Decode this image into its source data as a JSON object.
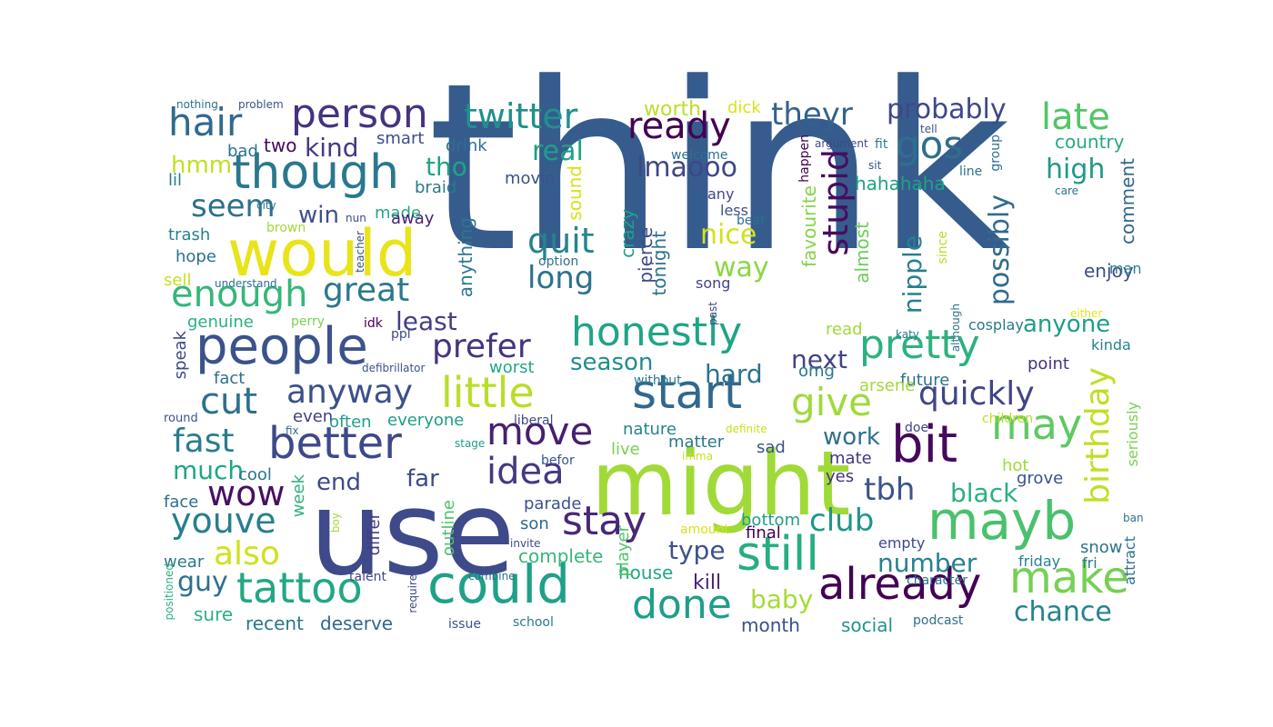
{
  "words": [
    {
      "text": "think",
      "color": "#365c8d",
      "vertical": false
    },
    {
      "text": "use",
      "color": "#3e4a89",
      "vertical": false
    },
    {
      "text": "might",
      "color": "#a0da39",
      "vertical": false
    },
    {
      "text": "would",
      "color": "#e8e419",
      "vertical": false
    },
    {
      "text": "people",
      "color": "#3b528b",
      "vertical": false
    },
    {
      "text": "could",
      "color": "#1fa187",
      "vertical": false
    },
    {
      "text": "mayb",
      "color": "#4ac16d",
      "vertical": false
    },
    {
      "text": "though",
      "color": "#2a788e",
      "vertical": false
    },
    {
      "text": "start",
      "color": "#31688e",
      "vertical": false
    },
    {
      "text": "still",
      "color": "#26ad81",
      "vertical": false
    },
    {
      "text": "better",
      "color": "#3e4989",
      "vertical": false
    },
    {
      "text": "already",
      "color": "#440154",
      "vertical": false
    },
    {
      "text": "bit",
      "color": "#46085c",
      "vertical": false
    },
    {
      "text": "honestly",
      "color": "#20a486",
      "vertical": false
    },
    {
      "text": "pretty",
      "color": "#2db27d",
      "vertical": false
    },
    {
      "text": "tattoo",
      "color": "#22a785",
      "vertical": false
    },
    {
      "text": "make",
      "color": "#75d054",
      "vertical": false
    },
    {
      "text": "little",
      "color": "#b8de29",
      "vertical": false
    },
    {
      "text": "may",
      "color": "#5ec962",
      "vertical": false
    },
    {
      "text": "move",
      "color": "#481f70",
      "vertical": false
    },
    {
      "text": "stay",
      "color": "#482878",
      "vertical": false
    },
    {
      "text": "done",
      "color": "#1f9e89",
      "vertical": false
    },
    {
      "text": "person",
      "color": "#46337e",
      "vertical": false
    },
    {
      "text": "wow",
      "color": "#471063",
      "vertical": false
    },
    {
      "text": "idea",
      "color": "#443983",
      "vertical": false
    },
    {
      "text": "youve",
      "color": "#277f8e",
      "vertical": false
    },
    {
      "text": "enough",
      "color": "#35b779",
      "vertical": false
    },
    {
      "text": "hair",
      "color": "#30698e",
      "vertical": false
    },
    {
      "text": "give",
      "color": "#9fda3a",
      "vertical": false
    },
    {
      "text": "stupid",
      "color": "#470d60",
      "vertical": true
    },
    {
      "text": "birthday",
      "color": "#c0df25",
      "vertical": true
    },
    {
      "text": "ready",
      "color": "#440154",
      "vertical": false
    },
    {
      "text": "twitter",
      "color": "#21908d",
      "vertical": false
    },
    {
      "text": "prefer",
      "color": "#463480",
      "vertical": false
    },
    {
      "text": "gos",
      "color": "#2e6f8e",
      "vertical": false
    },
    {
      "text": "late",
      "color": "#52c569",
      "vertical": false
    },
    {
      "text": "anyway",
      "color": "#3b518b",
      "vertical": false
    },
    {
      "text": "quickly",
      "color": "#414487",
      "vertical": false
    },
    {
      "text": "also",
      "color": "#d0e11c",
      "vertical": false
    },
    {
      "text": "cut",
      "color": "#2d708e",
      "vertical": false
    },
    {
      "text": "great",
      "color": "#2a788e",
      "vertical": false
    },
    {
      "text": "fast",
      "color": "#287d8e",
      "vertical": false
    },
    {
      "text": "quit",
      "color": "#25848e",
      "vertical": false
    },
    {
      "text": "theyr",
      "color": "#33628d",
      "vertical": false
    },
    {
      "text": "club",
      "color": "#1f968b",
      "vertical": false
    },
    {
      "text": "long",
      "color": "#2c728e",
      "vertical": false
    },
    {
      "text": "tbh",
      "color": "#3a548c",
      "vertical": false
    },
    {
      "text": "seem",
      "color": "#2d718e",
      "vertical": false
    },
    {
      "text": "probably",
      "color": "#3f4788",
      "vertical": false
    },
    {
      "text": "lmaooo",
      "color": "#404688",
      "vertical": false
    },
    {
      "text": "possibly",
      "color": "#2f6c8e",
      "vertical": true
    },
    {
      "text": "nipple",
      "color": "#27808e",
      "vertical": true
    },
    {
      "text": "high",
      "color": "#1f9a8a",
      "vertical": false
    },
    {
      "text": "guy",
      "color": "#2d718e",
      "vertical": false
    },
    {
      "text": "real",
      "color": "#1fa088",
      "vertical": false
    },
    {
      "text": "nice",
      "color": "#d2e21b",
      "vertical": false
    },
    {
      "text": "way",
      "color": "#8bd646",
      "vertical": false
    },
    {
      "text": "kind",
      "color": "#443a83",
      "vertical": false
    },
    {
      "text": "black",
      "color": "#2ab07f",
      "vertical": false
    },
    {
      "text": "much",
      "color": "#21a585",
      "vertical": false
    },
    {
      "text": "baby",
      "color": "#a5db36",
      "vertical": false
    },
    {
      "text": "type",
      "color": "#3b528b",
      "vertical": false
    },
    {
      "text": "work",
      "color": "#2d708e",
      "vertical": false
    },
    {
      "text": "number",
      "color": "#26828e",
      "vertical": false
    },
    {
      "text": "anyone",
      "color": "#1f9e89",
      "vertical": false
    },
    {
      "text": "chance",
      "color": "#25838e",
      "vertical": false
    },
    {
      "text": "far",
      "color": "#3e4989",
      "vertical": false
    },
    {
      "text": "end",
      "color": "#3e4a89",
      "vertical": false
    },
    {
      "text": "least",
      "color": "#423f85",
      "vertical": false
    },
    {
      "text": "hard",
      "color": "#2c728e",
      "vertical": false
    },
    {
      "text": "next",
      "color": "#414487",
      "vertical": false
    },
    {
      "text": "season",
      "color": "#228d8d",
      "vertical": false
    },
    {
      "text": "tho",
      "color": "#20a386",
      "vertical": false
    },
    {
      "text": "hmm",
      "color": "#c2df23",
      "vertical": false
    },
    {
      "text": "win",
      "color": "#3b528b",
      "vertical": false
    },
    {
      "text": "worth",
      "color": "#bddf26",
      "vertical": false
    },
    {
      "text": "kill",
      "color": "#482475",
      "vertical": false
    },
    {
      "text": "house",
      "color": "#22a785",
      "vertical": false
    },
    {
      "text": "complete",
      "color": "#35b779",
      "vertical": false
    },
    {
      "text": "recent",
      "color": "#2b758e",
      "vertical": false
    },
    {
      "text": "deserve",
      "color": "#31688e",
      "vertical": false
    },
    {
      "text": "sure",
      "color": "#2ab07f",
      "vertical": false
    },
    {
      "text": "month",
      "color": "#3c4f8a",
      "vertical": false
    },
    {
      "text": "social",
      "color": "#1f948c",
      "vertical": false
    },
    {
      "text": "country",
      "color": "#25ab82",
      "vertical": false
    },
    {
      "text": "enjoy",
      "color": "#3e4c8a",
      "vertical": false
    },
    {
      "text": "comment",
      "color": "#31688e",
      "vertical": true
    },
    {
      "text": "hahahaha",
      "color": "#1fa187",
      "vertical": false
    },
    {
      "text": "almost",
      "color": "#6ccd5a",
      "vertical": true
    },
    {
      "text": "favourite",
      "color": "#84d44b",
      "vertical": true
    },
    {
      "text": "crazy",
      "color": "#1fa188",
      "vertical": true
    },
    {
      "text": "pierce",
      "color": "#3e4a89",
      "vertical": true
    },
    {
      "text": "tonight",
      "color": "#2c728e",
      "vertical": true
    },
    {
      "text": "anything",
      "color": "#2a788e",
      "vertical": true
    },
    {
      "text": "sound",
      "color": "#d8e219",
      "vertical": true
    },
    {
      "text": "drink",
      "color": "#2d708e",
      "vertical": false
    },
    {
      "text": "braid",
      "color": "#2a788e",
      "vertical": false
    },
    {
      "text": "movie",
      "color": "#3b528b",
      "vertical": false
    },
    {
      "text": "smart",
      "color": "#3e4c8a",
      "vertical": false
    },
    {
      "text": "two",
      "color": "#46085c",
      "vertical": false
    },
    {
      "text": "made",
      "color": "#22a785",
      "vertical": false
    },
    {
      "text": "away",
      "color": "#482475",
      "vertical": false
    },
    {
      "text": "lil",
      "color": "#287d8e",
      "vertical": false
    },
    {
      "text": "bad",
      "color": "#2c728e",
      "vertical": false
    },
    {
      "text": "trash",
      "color": "#26828e",
      "vertical": false
    },
    {
      "text": "hope",
      "color": "#2c728e",
      "vertical": false
    },
    {
      "text": "sell",
      "color": "#c8e020",
      "vertical": false
    },
    {
      "text": "genuine",
      "color": "#2ab07f",
      "vertical": false
    },
    {
      "text": "speak",
      "color": "#3e4989",
      "vertical": true
    },
    {
      "text": "fact",
      "color": "#2d708e",
      "vertical": false
    },
    {
      "text": "even",
      "color": "#433e85",
      "vertical": false
    },
    {
      "text": "often",
      "color": "#1fa187",
      "vertical": false
    },
    {
      "text": "everyone",
      "color": "#1f9e89",
      "vertical": false
    },
    {
      "text": "nature",
      "color": "#26828e",
      "vertical": false
    },
    {
      "text": "matter",
      "color": "#2a788e",
      "vertical": false
    },
    {
      "text": "live",
      "color": "#7ad151",
      "vertical": false
    },
    {
      "text": "sad",
      "color": "#3b528b",
      "vertical": false
    },
    {
      "text": "mate",
      "color": "#453781",
      "vertical": false
    },
    {
      "text": "yes",
      "color": "#46327e",
      "vertical": false
    },
    {
      "text": "cool",
      "color": "#2b758e",
      "vertical": false
    },
    {
      "text": "face",
      "color": "#2d708e",
      "vertical": false
    },
    {
      "text": "week",
      "color": "#2db27d",
      "vertical": true
    },
    {
      "text": "wear",
      "color": "#2a788e",
      "vertical": false
    },
    {
      "text": "differ",
      "color": "#443a83",
      "vertical": true
    },
    {
      "text": "outline",
      "color": "#4ac16d",
      "vertical": true
    },
    {
      "text": "player",
      "color": "#52c569",
      "vertical": true
    },
    {
      "text": "parade",
      "color": "#3b528b",
      "vertical": false
    },
    {
      "text": "son",
      "color": "#31688e",
      "vertical": false
    },
    {
      "text": "final",
      "color": "#440154",
      "vertical": false
    },
    {
      "text": "bottom",
      "color": "#1f9e89",
      "vertical": false
    },
    {
      "text": "empty",
      "color": "#3e4a89",
      "vertical": false
    },
    {
      "text": "snow",
      "color": "#2c728e",
      "vertical": false
    },
    {
      "text": "friday",
      "color": "#26828e",
      "vertical": false
    },
    {
      "text": "fri",
      "color": "#2a788e",
      "vertical": false
    },
    {
      "text": "attract",
      "color": "#2d708e",
      "vertical": true
    },
    {
      "text": "grove",
      "color": "#3b528b",
      "vertical": false
    },
    {
      "text": "seriously",
      "color": "#7ad151",
      "vertical": true
    },
    {
      "text": "hot",
      "color": "#a0da39",
      "vertical": false
    },
    {
      "text": "point",
      "color": "#46327e",
      "vertical": false
    },
    {
      "text": "kinda",
      "color": "#25838e",
      "vertical": false
    },
    {
      "text": "man",
      "color": "#287d8e",
      "vertical": false
    },
    {
      "text": "future",
      "color": "#2d708e",
      "vertical": false
    },
    {
      "text": "arsene",
      "color": "#9fda3a",
      "vertical": false
    },
    {
      "text": "omg",
      "color": "#2a788e",
      "vertical": false
    },
    {
      "text": "read",
      "color": "#a0da39",
      "vertical": false
    },
    {
      "text": "cosplay",
      "color": "#2a788e",
      "vertical": false
    },
    {
      "text": "worst",
      "color": "#22a785",
      "vertical": false
    },
    {
      "text": "dick",
      "color": "#d8e219",
      "vertical": false
    },
    {
      "text": "any",
      "color": "#3e4989",
      "vertical": false
    },
    {
      "text": "less",
      "color": "#3b528b",
      "vertical": false
    },
    {
      "text": "beat",
      "color": "#2d708e",
      "vertical": false
    },
    {
      "text": "song",
      "color": "#414487",
      "vertical": false
    },
    {
      "text": "option",
      "color": "#2c728e",
      "vertical": false
    },
    {
      "text": "idk",
      "color": "#440154",
      "vertical": false
    },
    {
      "text": "perry",
      "color": "#7ad151",
      "vertical": false
    },
    {
      "text": "ppl",
      "color": "#3e4a89",
      "vertical": false
    },
    {
      "text": "defibrillator",
      "color": "#3b528b",
      "vertical": false
    },
    {
      "text": "without",
      "color": "#2a788e",
      "vertical": false
    },
    {
      "text": "round",
      "color": "#3b528b",
      "vertical": false
    },
    {
      "text": "fix",
      "color": "#2d708e",
      "vertical": false
    },
    {
      "text": "liberal",
      "color": "#3e4a89",
      "vertical": false
    },
    {
      "text": "stage",
      "color": "#1f9e89",
      "vertical": false
    },
    {
      "text": "befor",
      "color": "#3b528b",
      "vertical": false
    },
    {
      "text": "imma",
      "color": "#c8e020",
      "vertical": false
    },
    {
      "text": "definite",
      "color": "#c8e020",
      "vertical": false
    },
    {
      "text": "doe",
      "color": "#414487",
      "vertical": false
    },
    {
      "text": "children",
      "color": "#bddf26",
      "vertical": false
    },
    {
      "text": "ban",
      "color": "#2c728e",
      "vertical": false
    },
    {
      "text": "either",
      "color": "#e8e419",
      "vertical": false
    },
    {
      "text": "katy",
      "color": "#2a788e",
      "vertical": false
    },
    {
      "text": "although",
      "color": "#2d708e",
      "vertical": true
    },
    {
      "text": "since",
      "color": "#b8de29",
      "vertical": true
    },
    {
      "text": "past",
      "color": "#3e4a89",
      "vertical": true
    },
    {
      "text": "welcome",
      "color": "#2d708e",
      "vertical": false
    },
    {
      "text": "sit",
      "color": "#3b528b",
      "vertical": false
    },
    {
      "text": "line",
      "color": "#2d708e",
      "vertical": false
    },
    {
      "text": "care",
      "color": "#2c728e",
      "vertical": false
    },
    {
      "text": "happen",
      "color": "#440154",
      "vertical": true
    },
    {
      "text": "argument",
      "color": "#3e4a89",
      "vertical": false
    },
    {
      "text": "fit",
      "color": "#26828e",
      "vertical": false
    },
    {
      "text": "tell",
      "color": "#3b528b",
      "vertical": false
    },
    {
      "text": "group",
      "color": "#2d708e",
      "vertical": true
    },
    {
      "text": "nothing",
      "color": "#2d708e",
      "vertical": false
    },
    {
      "text": "problem",
      "color": "#3b528b",
      "vertical": false
    },
    {
      "text": "city",
      "color": "#2a788e",
      "vertical": false
    },
    {
      "text": "brown",
      "color": "#a0da39",
      "vertical": false
    },
    {
      "text": "nun",
      "color": "#3e4a89",
      "vertical": false
    },
    {
      "text": "teacher",
      "color": "#3b528b",
      "vertical": true
    },
    {
      "text": "understand",
      "color": "#2d708e",
      "vertical": false
    },
    {
      "text": "boy",
      "color": "#a0da39",
      "vertical": true
    },
    {
      "text": "amount",
      "color": "#d8e219",
      "vertical": false
    },
    {
      "text": "invite",
      "color": "#3e4a89",
      "vertical": false
    },
    {
      "text": "talent",
      "color": "#414487",
      "vertical": false
    },
    {
      "text": "require",
      "color": "#3e4a89",
      "vertical": true
    },
    {
      "text": "combine",
      "color": "#2d708e",
      "vertical": false
    },
    {
      "text": "issue",
      "color": "#3b528b",
      "vertical": false
    },
    {
      "text": "school",
      "color": "#2a788e",
      "vertical": false
    },
    {
      "text": "podcast",
      "color": "#2d708e",
      "vertical": false
    },
    {
      "text": "character",
      "color": "#2c728e",
      "vertical": false
    },
    {
      "text": "positioned",
      "color": "#2ab07f",
      "vertical": true
    }
  ]
}
